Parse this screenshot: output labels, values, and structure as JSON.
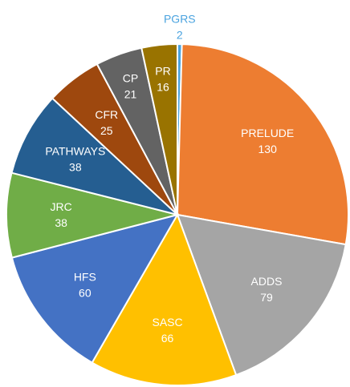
{
  "chart_data": {
    "type": "pie",
    "categories": [
      "PGRS",
      "PRELUDE",
      "ADDS",
      "SASC",
      "HFS",
      "JRC",
      "PATHWAYS",
      "CFR",
      "CP",
      "PR"
    ],
    "values": [
      2,
      130,
      79,
      66,
      60,
      38,
      38,
      25,
      21,
      16
    ],
    "colors": [
      "#4aa3df",
      "#ed7d31",
      "#a5a5a5",
      "#ffc000",
      "#4472c4",
      "#70ad47",
      "#255e91",
      "#9e480e",
      "#636363",
      "#997300"
    ]
  }
}
